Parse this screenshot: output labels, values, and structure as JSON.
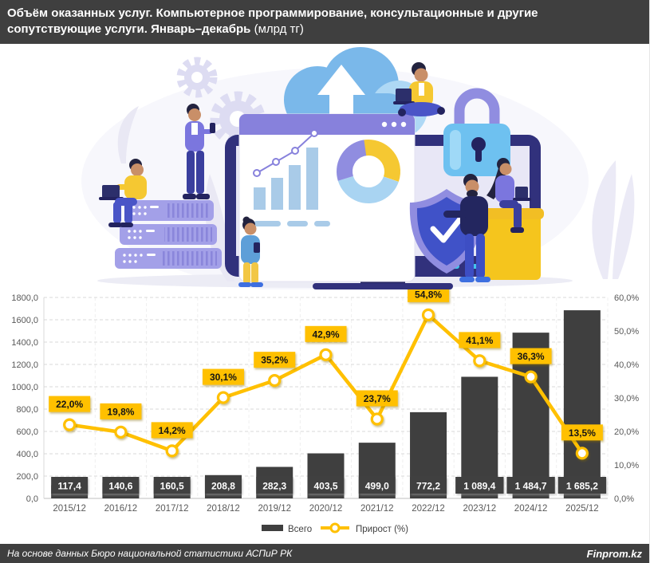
{
  "header": {
    "title_line1": "Объём оказанных услуг. Компьютерное программирование, консультационные и другие",
    "title_line2_bold": "сопутствующие услуги. Январь–декабрь",
    "title_line2_unit": "(млрд тг)"
  },
  "illustration": {
    "icons": [
      "gear-icon",
      "cloud-upload-icon",
      "monitor-chart-icon",
      "browser-window",
      "mini-bar-chart",
      "mini-line-chart",
      "donut-chart-icon",
      "server-rack-icon",
      "padlock-icon",
      "shield-check-icon",
      "people-with-devices"
    ]
  },
  "chart_data": {
    "type": "bar+line",
    "categories": [
      "2015/12",
      "2016/12",
      "2017/12",
      "2018/12",
      "2019/12",
      "2020/12",
      "2021/12",
      "2022/12",
      "2023/12",
      "2024/12",
      "2025/12"
    ],
    "series": [
      {
        "name": "Всего",
        "type": "bar",
        "axis": "left",
        "color": "#3F3F3F",
        "values": [
          117.4,
          140.6,
          160.5,
          208.8,
          282.3,
          403.5,
          499.0,
          772.2,
          1089.4,
          1484.7,
          1685.2
        ],
        "labels": [
          "117,4",
          "140,6",
          "160,5",
          "208,8",
          "282,3",
          "403,5",
          "499,0",
          "772,2",
          "1 089,4",
          "1 484,7",
          "1 685,2"
        ]
      },
      {
        "name": "Прирост (%)",
        "type": "line",
        "axis": "right",
        "color": "#FFC000",
        "values": [
          22.0,
          19.8,
          14.2,
          30.1,
          35.2,
          42.9,
          23.7,
          54.8,
          41.1,
          36.3,
          13.5
        ],
        "labels": [
          "22,0%",
          "19,8%",
          "14,2%",
          "30,1%",
          "35,2%",
          "42,9%",
          "23,7%",
          "54,8%",
          "41,1%",
          "36,3%",
          "13,5%"
        ]
      }
    ],
    "left_axis": {
      "min": 0,
      "max": 1800,
      "step": 200,
      "tick_labels": [
        "0,0",
        "200,0",
        "400,0",
        "600,0",
        "800,0",
        "1000,0",
        "1200,0",
        "1400,0",
        "1600,0",
        "1800,0"
      ]
    },
    "right_axis": {
      "min": 0,
      "max": 60,
      "step": 10,
      "tick_labels": [
        "0,0%",
        "10,0%",
        "20,0%",
        "30,0%",
        "40,0%",
        "50,0%",
        "60,0%"
      ]
    },
    "legend": [
      "Всего",
      "Прирост (%)"
    ],
    "legend_position": "bottom",
    "grid": true
  },
  "footer": {
    "source": "На основе данных Бюро национальной статистики АСПиР РК",
    "brand": "Finprom.kz"
  },
  "colors": {
    "accent_yellow": "#FFC000",
    "bar_dark": "#3F3F3F",
    "titlebar_bg": "#3F3F3F",
    "axis_text": "#595959",
    "marker_fill": "#FFFFFF"
  }
}
